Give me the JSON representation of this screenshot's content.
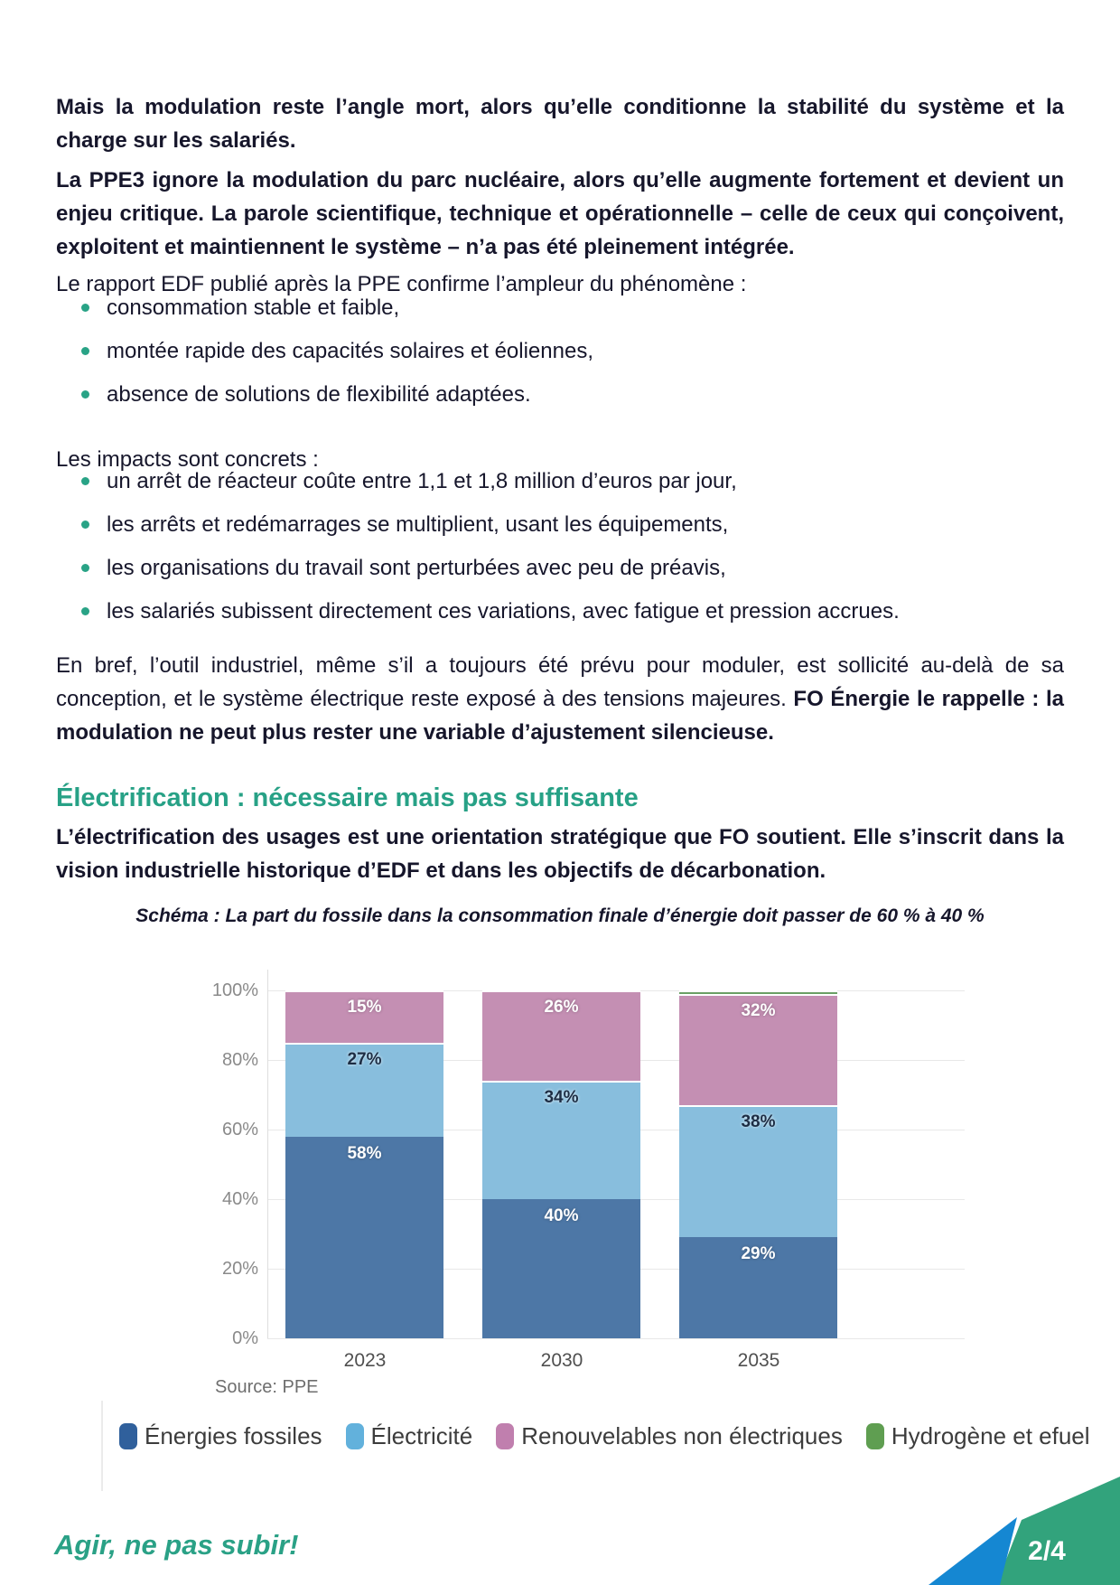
{
  "content": {
    "p1": "Mais la modulation reste l’angle mort, alors qu’elle conditionne la stabilité du système et la charge sur les salariés.",
    "p2": "La PPE3 ignore la modulation du parc nucléaire, alors qu’elle augmente fortement et devient un enjeu critique. La parole scientifique, technique et opérationnelle – celle de ceux qui conçoivent, exploitent et maintiennent le système – n’a pas été pleinement intégrée.",
    "p3": "Le rapport EDF publié après la PPE confirme l’ampleur du phénomène :",
    "bullets1": [
      "consommation stable et faible,",
      "montée rapide des capacités solaires et éoliennes,",
      "absence de solutions de flexibilité adaptées."
    ],
    "p4": "Les impacts sont concrets :",
    "bullets2": [
      "un arrêt de réacteur coûte entre 1,1 et 1,8 million d’euros par jour,",
      "les arrêts et redémarrages se multiplient, usant les équipements,",
      "les organisations du travail sont perturbées avec peu de préavis,",
      "les salariés subissent directement ces variations, avec fatigue et pression accrues."
    ],
    "p5_normal": "En bref, l’outil industriel, même s’il a toujours été prévu pour moduler, est sollicité au-delà de sa conception, et le système électrique reste exposé à des tensions majeures. ",
    "p5_bold": "FO Énergie le rappelle : la modulation ne peut plus rester une variable d’ajustement silencieuse.",
    "heading": "Électrification : nécessaire mais pas suffisante",
    "p6": "L’électrification des usages est une orientation stratégique que FO soutient. Elle s’inscrit dans la vision industrielle historique d’EDF et dans les objectifs de décarbonation."
  },
  "chart_data": {
    "type": "bar",
    "stacked": true,
    "title": "Schéma : La part du fossile dans la consommation finale d’énergie doit passer de 60 % à 40 %",
    "categories": [
      "2023",
      "2030",
      "2035"
    ],
    "series": [
      {
        "name": "Énergies fossiles",
        "values": [
          58,
          40,
          29
        ],
        "color": "#4d77a6",
        "legend_color": "#30609c",
        "label_color": "#ffffff"
      },
      {
        "name": "Électricité",
        "values": [
          27,
          34,
          38
        ],
        "color": "#88bedd",
        "legend_color": "#62b1dc",
        "label_color": "#1d2d44"
      },
      {
        "name": "Renouvelables non électriques",
        "values": [
          15,
          26,
          32
        ],
        "color": "#c48fb3",
        "legend_color": "#c07fae",
        "label_color": "#ffffff"
      },
      {
        "name": "Hydrogène et efuel",
        "values": [
          0,
          0,
          1
        ],
        "color": "#6aa065",
        "legend_color": "#5f9e51",
        "label_color": null
      }
    ],
    "ylim": [
      0,
      100
    ],
    "yticks": [
      "0%",
      "20%",
      "40%",
      "60%",
      "80%",
      "100%"
    ],
    "grid": true,
    "legend_position": "bottom",
    "source": "Source: PPE"
  },
  "footer": {
    "slogan": "Agir, ne pas subir!",
    "page_number": "2/4",
    "slogan_color": "#2aa186",
    "triangle_blue": "#1587d2",
    "corner_green": "#32a37c"
  },
  "accent": {
    "teal": "#27a186",
    "bullet": "#29a386",
    "text": "#16162b"
  }
}
